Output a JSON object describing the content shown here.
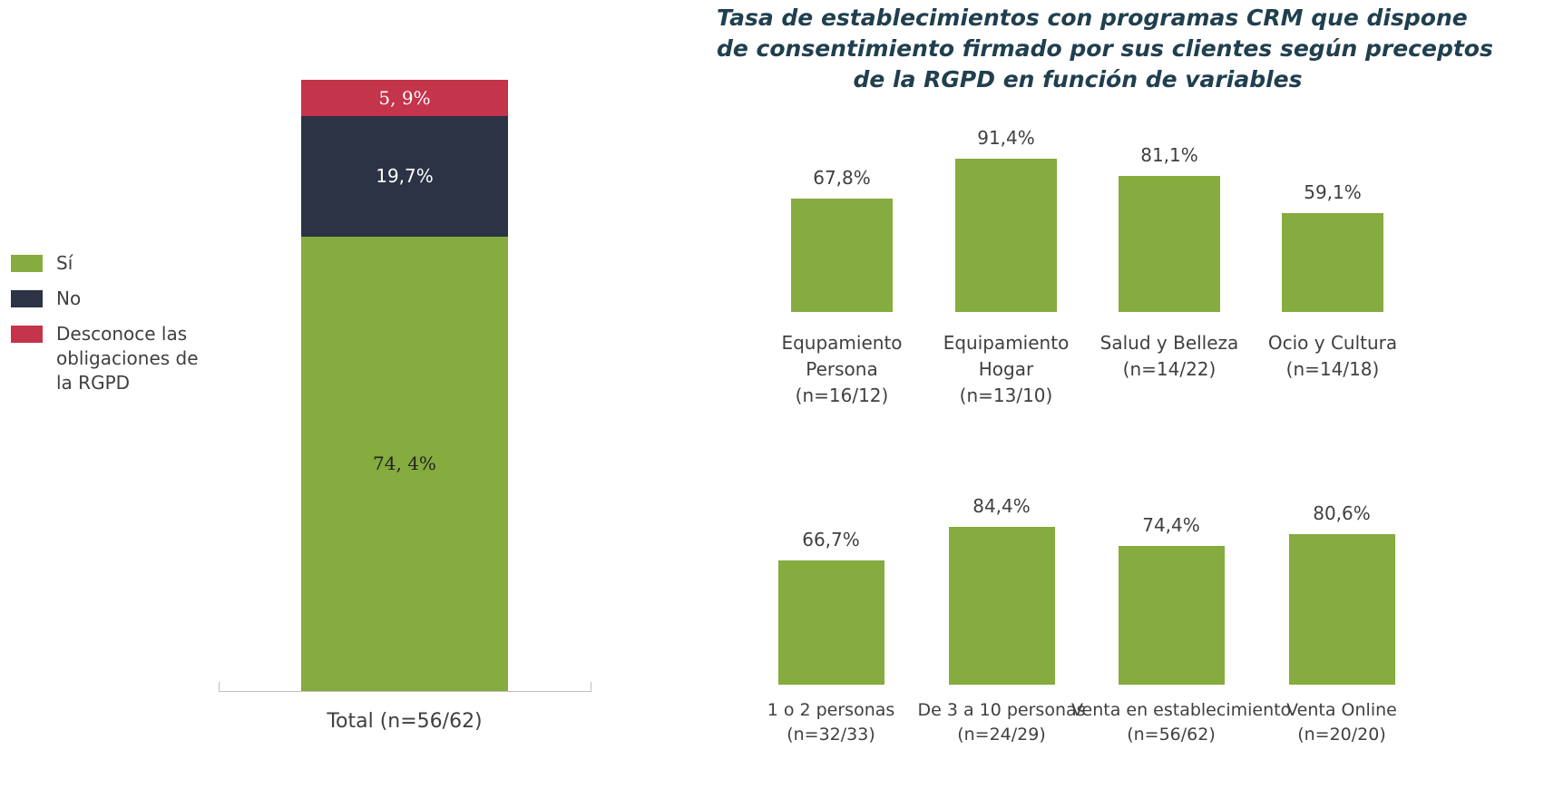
{
  "chart_data": [
    {
      "type": "stacked_bar",
      "categories": [
        "Total (n=56/62)"
      ],
      "ylim": [
        0,
        100
      ],
      "series": [
        {
          "name": "Sí",
          "color": "#86ab3e",
          "values": [
            74.4
          ],
          "value_labels": [
            "74, 4%"
          ]
        },
        {
          "name": "No",
          "color": "#2b3345",
          "values": [
            19.7
          ],
          "value_labels": [
            "19,7%"
          ]
        },
        {
          "name": "Desconoce las obligaciones de la RGPD",
          "color": "#c4344a",
          "values": [
            5.9
          ],
          "value_labels": [
            "5, 9%"
          ]
        }
      ]
    },
    {
      "type": "bar",
      "title": "Tasa de establecimientos con programas CRM que dispone\nde consentimiento firmado por sus clientes según preceptos\nde la RGPD en función de variables",
      "categories": [
        "Equpamiento\nPersona\n(n=16/12)",
        "Equipamiento\nHogar\n(n=13/10)",
        "Salud y Belleza\n(n=14/22)",
        "Ocio y Cultura\n(n=14/18)"
      ],
      "values": [
        67.8,
        91.4,
        81.1,
        59.1
      ],
      "value_labels": [
        "67,8%",
        "91,4%",
        "81,1%",
        "59,1%"
      ],
      "color": "#86ab3e",
      "ylim": [
        0,
        100
      ]
    },
    {
      "type": "bar",
      "categories": [
        "1 o 2 personas\n(n=32/33)",
        "De 3 a 10 personas\n(n=24/29)",
        "Venta en establecimiento\n(n=56/62)",
        "Venta Online\n(n=20/20)"
      ],
      "values": [
        66.7,
        84.4,
        74.4,
        80.6
      ],
      "value_labels": [
        "66,7%",
        "84,4%",
        "74,4%",
        "80,6%"
      ],
      "color": "#86ab3e",
      "ylim": [
        0,
        100
      ]
    }
  ]
}
